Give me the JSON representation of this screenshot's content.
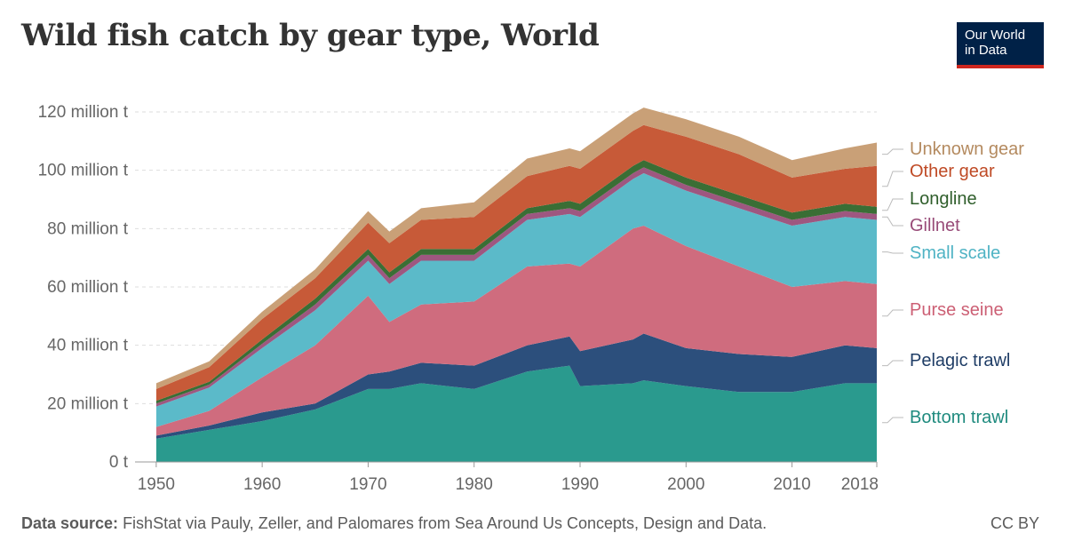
{
  "title": "Wild fish catch by gear type, World",
  "logo": {
    "line1": "Our World",
    "line2": "in Data"
  },
  "footer": {
    "source_label": "Data source:",
    "source_text": "FishStat via Pauly, Zeller, and Palomares from Sea Around Us Concepts, Design and Data.",
    "license": "CC BY"
  },
  "chart_data": {
    "type": "area",
    "stacked": true,
    "title": "Wild fish catch by gear type, World",
    "x_ticks": [
      "1950",
      "1960",
      "1970",
      "1980",
      "1990",
      "2000",
      "2010",
      "2018"
    ],
    "y_ticks": [
      "0 t",
      "20 million t",
      "40 million t",
      "60 million t",
      "80 million t",
      "100 million t",
      "120 million t"
    ],
    "ylim": [
      0,
      120
    ],
    "grid": true,
    "legend_position": "right, inline labels",
    "x": [
      1950,
      1955,
      1960,
      1965,
      1970,
      1972,
      1975,
      1980,
      1985,
      1989,
      1990,
      1995,
      1996,
      2000,
      2005,
      2010,
      2015,
      2018
    ],
    "series": [
      {
        "name": "Bottom trawl",
        "color": "#2a9a8e",
        "values": [
          8,
          11,
          14,
          18,
          25,
          25,
          27,
          25,
          31,
          33,
          26,
          27,
          28,
          26,
          24,
          24,
          27,
          27
        ]
      },
      {
        "name": "Pelagic trawl",
        "color": "#2c4f7c",
        "values": [
          1,
          1.5,
          3,
          2,
          5,
          6,
          7,
          8,
          9,
          10,
          12,
          15,
          16,
          13,
          13,
          12,
          13,
          12
        ]
      },
      {
        "name": "Purse seine",
        "color": "#cf6c7e",
        "values": [
          3,
          5,
          12,
          20,
          27,
          17,
          20,
          22,
          27,
          25,
          29,
          38,
          37,
          35,
          30,
          24,
          22,
          22
        ]
      },
      {
        "name": "Small scale",
        "color": "#5bbac9",
        "values": [
          7,
          8,
          10,
          12,
          12,
          13,
          15,
          14,
          16,
          17,
          17,
          17,
          18,
          19,
          20,
          21,
          22,
          22
        ]
      },
      {
        "name": "Gillnet",
        "color": "#9e5780",
        "values": [
          1,
          1,
          1.5,
          2,
          2,
          2,
          2,
          2,
          2,
          2,
          2,
          2,
          2,
          2,
          2,
          2,
          2,
          2
        ]
      },
      {
        "name": "Longline",
        "color": "#3a6e35",
        "values": [
          1,
          1,
          1.5,
          2,
          2,
          2,
          2,
          2,
          2,
          2.5,
          2.5,
          2.5,
          2.5,
          2.5,
          2.5,
          2.5,
          2.5,
          2.5
        ]
      },
      {
        "name": "Other gear",
        "color": "#c75a38",
        "values": [
          4,
          5,
          7,
          7,
          9,
          10,
          10,
          11,
          11,
          12,
          12,
          12,
          12,
          14,
          14,
          12,
          12,
          14
        ]
      },
      {
        "name": "Unknown gear",
        "color": "#c9a077",
        "values": [
          2,
          2,
          2.5,
          3,
          4,
          4,
          4,
          5,
          6,
          6,
          6,
          6,
          6,
          6,
          6,
          6,
          7,
          8
        ]
      }
    ]
  }
}
